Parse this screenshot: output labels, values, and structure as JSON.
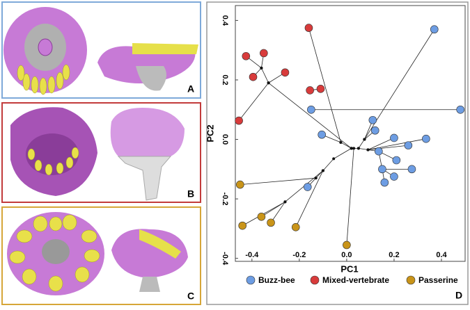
{
  "panels": [
    {
      "label": "A"
    },
    {
      "label": "B"
    },
    {
      "label": "C"
    }
  ],
  "chart_data": {
    "type": "scatter",
    "panel_label": "D",
    "x_label": "PC1",
    "y_label": "PC2",
    "xlim": [
      -0.47,
      0.5
    ],
    "ylim": [
      -0.41,
      0.45
    ],
    "xticks": [
      -0.4,
      -0.2,
      {
        "value": 0,
        "label": "0.0"
      },
      0.2,
      0.4
    ],
    "yticks": [
      -0.4,
      -0.2,
      {
        "value": 0,
        "label": "0.0"
      },
      0.2,
      0.4
    ],
    "tree_segments": [
      [
        0.075,
        0,
        0.37,
        0.37
      ],
      [
        -0.15,
        0.1,
        0.48,
        0.1
      ],
      [
        -0.025,
        -0.01,
        -0.105,
        0.016
      ],
      [
        0.02,
        -0.03,
        -0.025,
        -0.01
      ],
      [
        0.02,
        -0.03,
        0.05,
        -0.03
      ],
      [
        0.05,
        -0.03,
        0.09,
        -0.035
      ],
      [
        0.09,
        -0.035,
        0.2,
        0.005
      ],
      [
        0.09,
        -0.035,
        0.335,
        0.002
      ],
      [
        0.05,
        -0.03,
        0.075,
        0
      ],
      [
        0.075,
        0,
        0.11,
        0.065
      ],
      [
        0.075,
        0,
        0.12,
        0.03
      ],
      [
        0.09,
        -0.035,
        0.26,
        -0.02
      ],
      [
        0.09,
        -0.035,
        0.135,
        -0.04
      ],
      [
        0.135,
        -0.04,
        0.21,
        -0.07
      ],
      [
        0.135,
        -0.04,
        0.15,
        -0.1
      ],
      [
        0.15,
        -0.1,
        0.275,
        -0.1
      ],
      [
        0.15,
        -0.1,
        0.2,
        -0.125
      ],
      [
        0.15,
        -0.1,
        0.16,
        -0.145
      ],
      [
        -0.025,
        -0.01,
        -0.16,
        0.375
      ],
      [
        -0.155,
        0.165,
        -0.11,
        0.17
      ],
      [
        0.02,
        -0.03,
        -0.33,
        0.19
      ],
      [
        -0.33,
        0.19,
        -0.36,
        0.24
      ],
      [
        -0.36,
        0.24,
        -0.425,
        0.28
      ],
      [
        -0.36,
        0.24,
        -0.35,
        0.29
      ],
      [
        -0.36,
        0.24,
        -0.395,
        0.21
      ],
      [
        -0.33,
        0.19,
        -0.26,
        0.225
      ],
      [
        -0.33,
        0.19,
        -0.455,
        0.063
      ],
      [
        0.02,
        -0.03,
        -0.055,
        -0.065
      ],
      [
        -0.055,
        -0.065,
        -0.1,
        -0.105
      ],
      [
        -0.1,
        -0.105,
        -0.13,
        -0.13
      ],
      [
        -0.13,
        -0.13,
        -0.165,
        -0.16
      ],
      [
        -0.13,
        -0.13,
        -0.45,
        -0.152
      ],
      [
        -0.1,
        -0.105,
        -0.26,
        -0.21
      ],
      [
        -0.26,
        -0.21,
        -0.36,
        -0.26
      ],
      [
        -0.26,
        -0.21,
        -0.44,
        -0.29
      ],
      [
        -0.26,
        -0.21,
        -0.32,
        -0.28
      ],
      [
        -0.1,
        -0.105,
        -0.215,
        -0.295
      ],
      [
        0.03,
        -0.03,
        0,
        -0.355
      ]
    ],
    "series": [
      {
        "name": "Buzz-bee",
        "color": "#6d9de3",
        "x": [
          0.37,
          -0.15,
          0.48,
          0.11,
          0.12,
          -0.105,
          0.2,
          0.335,
          0.26,
          0.135,
          0.21,
          0.15,
          0.275,
          0.2,
          0.16,
          -0.165
        ],
        "values": [
          0.37,
          0.1,
          0.1,
          0.065,
          0.03,
          0.016,
          0.005,
          0.002,
          -0.02,
          -0.04,
          -0.07,
          -0.1,
          -0.1,
          -0.125,
          -0.145,
          -0.16
        ]
      },
      {
        "name": "Mixed-vertebrate",
        "color": "#d83b3b",
        "x": [
          -0.16,
          -0.425,
          -0.35,
          -0.395,
          -0.26,
          -0.155,
          -0.11,
          -0.455
        ],
        "values": [
          0.375,
          0.28,
          0.29,
          0.21,
          0.225,
          0.165,
          0.17,
          0.063
        ]
      },
      {
        "name": "Passerine",
        "color": "#c99419",
        "x": [
          -0.45,
          -0.36,
          -0.44,
          -0.32,
          -0.215,
          0
        ],
        "values": [
          -0.152,
          -0.26,
          -0.29,
          -0.28,
          -0.295,
          -0.355
        ]
      }
    ]
  }
}
